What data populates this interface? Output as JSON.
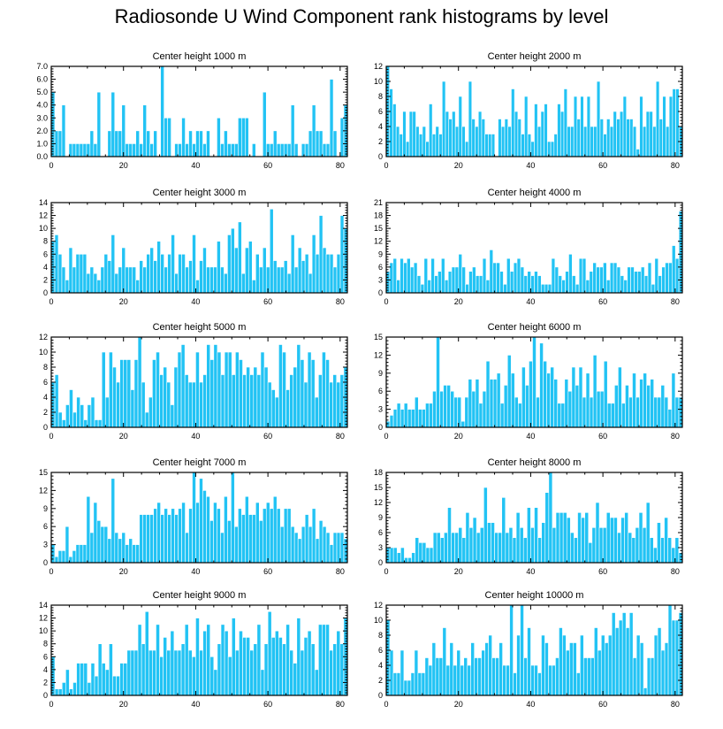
{
  "title": "Radiosonde U Wind Component rank histograms by level",
  "chart_data": [
    {
      "type": "bar",
      "title": "Center height 1000 m",
      "ylim": [
        0,
        7
      ],
      "yticks": [
        0,
        1,
        2,
        3,
        4,
        5,
        6,
        7
      ],
      "ytick_labels": [
        "0.0",
        "1.0",
        "2.0",
        "3.0",
        "4.0",
        "5.0",
        "6.0",
        "7.0"
      ],
      "xlim": [
        0,
        82
      ],
      "xticks": [
        0,
        20,
        40,
        60,
        80
      ],
      "xtick_labels": [
        "0",
        "20",
        "40",
        "60",
        "80"
      ],
      "values": [
        5,
        2,
        2,
        4,
        0,
        1,
        1,
        1,
        1,
        1,
        1,
        2,
        1,
        5,
        0,
        0,
        2,
        5,
        2,
        2,
        4,
        1,
        1,
        1,
        2,
        1,
        4,
        2,
        1,
        2,
        0,
        7,
        3,
        3,
        0,
        1,
        1,
        3,
        1,
        2,
        1,
        2,
        2,
        1,
        2,
        0,
        0,
        3,
        1,
        2,
        1,
        1,
        1,
        3,
        3,
        3,
        0,
        1,
        0,
        0,
        5,
        1,
        1,
        2,
        1,
        1,
        1,
        1,
        4,
        1,
        0,
        1,
        1,
        2,
        4,
        2,
        2,
        1,
        1,
        6,
        2,
        0,
        3,
        4
      ]
    },
    {
      "type": "bar",
      "title": "Center height 2000 m",
      "ylim": [
        0,
        12
      ],
      "yticks": [
        0,
        2,
        4,
        6,
        8,
        10,
        12
      ],
      "ytick_labels": [
        "0",
        "2",
        "4",
        "6",
        "8",
        "10",
        "12"
      ],
      "xlim": [
        0,
        82
      ],
      "xticks": [
        0,
        20,
        40,
        60,
        80
      ],
      "xtick_labels": [
        "0",
        "20",
        "40",
        "60",
        "80"
      ],
      "values": [
        12,
        9,
        7,
        4,
        3,
        6,
        2,
        6,
        6,
        4,
        3,
        4,
        2,
        7,
        3,
        4,
        3,
        10,
        6,
        5,
        6,
        4,
        8,
        4,
        2,
        10,
        5,
        4,
        6,
        5,
        3,
        3,
        3,
        0,
        5,
        4,
        5,
        4,
        9,
        6,
        5,
        3,
        8,
        3,
        2,
        7,
        4,
        6,
        7,
        2,
        2,
        3,
        7,
        6,
        9,
        4,
        4,
        8,
        5,
        8,
        4,
        8,
        4,
        4,
        10,
        5,
        3,
        5,
        4,
        6,
        5,
        6,
        8,
        5,
        5,
        4,
        1,
        8,
        4,
        6,
        6,
        4,
        10,
        5,
        8,
        4,
        8,
        9,
        9,
        4
      ]
    },
    {
      "type": "bar",
      "title": "Center height 3000 m",
      "ylim": [
        0,
        14
      ],
      "yticks": [
        0,
        2,
        4,
        6,
        8,
        10,
        12,
        14
      ],
      "ytick_labels": [
        "0",
        "2",
        "4",
        "6",
        "8",
        "10",
        "12",
        "14"
      ],
      "xlim": [
        0,
        82
      ],
      "xticks": [
        0,
        20,
        40,
        60,
        80
      ],
      "xtick_labels": [
        "0",
        "20",
        "40",
        "60",
        "80"
      ],
      "values": [
        8,
        9,
        6,
        4,
        2,
        7,
        4,
        6,
        6,
        6,
        3,
        4,
        3,
        2,
        4,
        6,
        5,
        9,
        3,
        4,
        7,
        4,
        4,
        4,
        2,
        5,
        4,
        6,
        7,
        5,
        8,
        6,
        4,
        6,
        9,
        3,
        6,
        6,
        4,
        5,
        9,
        2,
        5,
        7,
        4,
        4,
        4,
        8,
        4,
        3,
        9,
        10,
        7,
        11,
        3,
        7,
        8,
        2,
        6,
        4,
        7,
        4,
        13,
        5,
        4,
        4,
        5,
        3,
        9,
        4,
        7,
        5,
        6,
        3,
        9,
        6,
        12,
        7,
        6,
        6,
        4,
        6,
        12,
        10
      ]
    },
    {
      "type": "bar",
      "title": "Center height 4000 m",
      "ylim": [
        0,
        21
      ],
      "yticks": [
        0,
        3,
        6,
        9,
        12,
        15,
        18,
        21
      ],
      "ytick_labels": [
        "0",
        "3",
        "6",
        "9",
        "12",
        "15",
        "18",
        "21"
      ],
      "xlim": [
        0,
        82
      ],
      "xticks": [
        0,
        20,
        40,
        60,
        80
      ],
      "xtick_labels": [
        "0",
        "20",
        "40",
        "60",
        "80"
      ],
      "values": [
        5,
        7,
        8,
        3,
        8,
        7,
        8,
        6,
        7,
        4,
        2,
        8,
        3,
        8,
        4,
        5,
        8,
        3,
        5,
        6,
        6,
        9,
        6,
        2,
        5,
        6,
        4,
        4,
        8,
        3,
        10,
        7,
        7,
        5,
        2,
        8,
        5,
        7,
        8,
        6,
        4,
        5,
        4,
        5,
        4,
        2,
        2,
        2,
        8,
        6,
        4,
        3,
        5,
        9,
        4,
        2,
        8,
        8,
        3,
        5,
        7,
        6,
        6,
        7,
        3,
        7,
        7,
        6,
        4,
        3,
        6,
        6,
        5,
        5,
        6,
        4,
        7,
        2,
        8,
        4,
        6,
        7,
        7,
        11,
        8,
        19
      ]
    },
    {
      "type": "bar",
      "title": "Center height 5000 m",
      "ylim": [
        0,
        12
      ],
      "yticks": [
        0,
        2,
        4,
        6,
        8,
        10,
        12
      ],
      "ytick_labels": [
        "0",
        "2",
        "4",
        "6",
        "8",
        "10",
        "12"
      ],
      "xlim": [
        0,
        82
      ],
      "xticks": [
        0,
        20,
        40,
        60,
        80
      ],
      "xtick_labels": [
        "0",
        "20",
        "40",
        "60",
        "80"
      ],
      "values": [
        6,
        7,
        2,
        1,
        3,
        5,
        2,
        4,
        3,
        1,
        3,
        4,
        1,
        1,
        10,
        4,
        10,
        8,
        6,
        9,
        9,
        9,
        5,
        9,
        12,
        6,
        2,
        4,
        9,
        10,
        7,
        8,
        6,
        3,
        8,
        10,
        11,
        7,
        6,
        6,
        10,
        6,
        7,
        11,
        9,
        11,
        10,
        7,
        10,
        10,
        7,
        10,
        9,
        7,
        8,
        7,
        8,
        7,
        10,
        8,
        6,
        5,
        4,
        11,
        10,
        5,
        7,
        8,
        11,
        9,
        6,
        10,
        9,
        4,
        7,
        10,
        9,
        6,
        7,
        6,
        7,
        8
      ]
    },
    {
      "type": "bar",
      "title": "Center height 6000 m",
      "ylim": [
        0,
        15
      ],
      "yticks": [
        0,
        3,
        6,
        9,
        12,
        15
      ],
      "ytick_labels": [
        "0",
        "3",
        "6",
        "9",
        "12",
        "15"
      ],
      "xlim": [
        0,
        82
      ],
      "xticks": [
        0,
        20,
        40,
        60,
        80
      ],
      "xtick_labels": [
        "0",
        "20",
        "40",
        "60",
        "80"
      ],
      "values": [
        1,
        2,
        3,
        4,
        3,
        4,
        3,
        3,
        5,
        3,
        3,
        4,
        4,
        6,
        15,
        6,
        7,
        7,
        6,
        5,
        5,
        1,
        5,
        8,
        6,
        8,
        4,
        6,
        11,
        8,
        8,
        9,
        4,
        7,
        12,
        9,
        5,
        4,
        10,
        7,
        11,
        15,
        5,
        14,
        11,
        9,
        10,
        8,
        4,
        4,
        8,
        6,
        10,
        7,
        10,
        5,
        9,
        5,
        12,
        6,
        6,
        11,
        4,
        4,
        7,
        10,
        4,
        7,
        5,
        9,
        5,
        8,
        9,
        7,
        8,
        5,
        5,
        7,
        5,
        3,
        9,
        5,
        5
      ]
    },
    {
      "type": "bar",
      "title": "Center height 7000 m",
      "ylim": [
        0,
        15
      ],
      "yticks": [
        0,
        3,
        6,
        9,
        12,
        15
      ],
      "ytick_labels": [
        "0",
        "3",
        "6",
        "9",
        "12",
        "15"
      ],
      "xlim": [
        0,
        82
      ],
      "xticks": [
        0,
        20,
        40,
        60,
        80
      ],
      "xtick_labels": [
        "0",
        "20",
        "40",
        "60",
        "80"
      ],
      "values": [
        3,
        1,
        2,
        2,
        6,
        1,
        2,
        3,
        3,
        3,
        11,
        5,
        10,
        7,
        6,
        6,
        4,
        14,
        5,
        4,
        5,
        3,
        4,
        3,
        3,
        8,
        8,
        8,
        8,
        9,
        10,
        8,
        9,
        8,
        9,
        8,
        9,
        10,
        5,
        9,
        15,
        10,
        14,
        12,
        11,
        7,
        10,
        9,
        5,
        11,
        7,
        15,
        6,
        9,
        8,
        11,
        8,
        8,
        10,
        7,
        9,
        10,
        9,
        11,
        9,
        6,
        9,
        9,
        6,
        5,
        4,
        6,
        8,
        6,
        9,
        4,
        7,
        6,
        5,
        3,
        5,
        5,
        5,
        4
      ]
    },
    {
      "type": "bar",
      "title": "Center height 8000 m",
      "ylim": [
        0,
        18
      ],
      "yticks": [
        0,
        3,
        6,
        9,
        12,
        15,
        18
      ],
      "ytick_labels": [
        "0",
        "3",
        "6",
        "9",
        "12",
        "15",
        "18"
      ],
      "xlim": [
        0,
        82
      ],
      "xticks": [
        0,
        20,
        40,
        60,
        80
      ],
      "xtick_labels": [
        "0",
        "20",
        "40",
        "60",
        "80"
      ],
      "values": [
        3,
        3,
        3,
        2,
        3,
        1,
        1,
        2,
        5,
        4,
        4,
        3,
        3,
        6,
        6,
        5,
        6,
        11,
        6,
        6,
        7,
        5,
        10,
        7,
        9,
        6,
        7,
        15,
        8,
        8,
        6,
        6,
        13,
        6,
        7,
        5,
        10,
        7,
        5,
        11,
        7,
        11,
        5,
        8,
        14,
        18,
        7,
        10,
        10,
        10,
        9,
        6,
        5,
        10,
        9,
        10,
        4,
        7,
        12,
        7,
        7,
        10,
        9,
        9,
        6,
        9,
        10,
        6,
        5,
        7,
        10,
        7,
        12,
        5,
        3,
        8,
        5,
        9,
        5,
        3,
        5,
        2
      ]
    },
    {
      "type": "bar",
      "title": "Center height 9000 m",
      "ylim": [
        0,
        14
      ],
      "yticks": [
        0,
        2,
        4,
        6,
        8,
        10,
        12,
        14
      ],
      "ytick_labels": [
        "0",
        "2",
        "4",
        "6",
        "8",
        "10",
        "12",
        "14"
      ],
      "xlim": [
        0,
        82
      ],
      "xticks": [
        0,
        20,
        40,
        60,
        80
      ],
      "xtick_labels": [
        "0",
        "20",
        "40",
        "60",
        "80"
      ],
      "values": [
        6,
        1,
        1,
        2,
        4,
        1,
        2,
        5,
        5,
        5,
        2,
        5,
        3,
        8,
        5,
        4,
        8,
        3,
        3,
        5,
        5,
        7,
        7,
        7,
        11,
        8,
        13,
        7,
        7,
        11,
        6,
        9,
        7,
        10,
        7,
        7,
        8,
        11,
        7,
        6,
        12,
        7,
        10,
        11,
        6,
        4,
        8,
        11,
        10,
        6,
        12,
        7,
        10,
        9,
        9,
        7,
        8,
        11,
        4,
        8,
        13,
        9,
        10,
        9,
        8,
        11,
        7,
        5,
        12,
        7,
        9,
        10,
        8,
        4,
        11,
        11,
        11,
        7,
        8,
        10,
        8,
        12
      ]
    },
    {
      "type": "bar",
      "title": "Center height 10000 m",
      "ylim": [
        0,
        12
      ],
      "yticks": [
        0,
        2,
        4,
        6,
        8,
        10,
        12
      ],
      "ytick_labels": [
        "0",
        "2",
        "4",
        "6",
        "8",
        "10",
        "12"
      ],
      "xlim": [
        0,
        82
      ],
      "xticks": [
        0,
        20,
        40,
        60,
        80
      ],
      "xtick_labels": [
        "0",
        "20",
        "40",
        "60",
        "80"
      ],
      "values": [
        10,
        6,
        3,
        3,
        6,
        2,
        2,
        3,
        6,
        3,
        3,
        5,
        4,
        7,
        5,
        5,
        9,
        4,
        7,
        4,
        6,
        4,
        5,
        4,
        7,
        5,
        5,
        6,
        7,
        8,
        5,
        5,
        7,
        4,
        4,
        12,
        3,
        8,
        12,
        5,
        9,
        4,
        4,
        3,
        8,
        7,
        4,
        4,
        5,
        9,
        8,
        6,
        7,
        7,
        3,
        8,
        5,
        5,
        5,
        9,
        6,
        8,
        7,
        8,
        11,
        9,
        10,
        11,
        9,
        11,
        5,
        8,
        7,
        1,
        5,
        5,
        8,
        9,
        6,
        7,
        12,
        10,
        10,
        11
      ]
    }
  ]
}
